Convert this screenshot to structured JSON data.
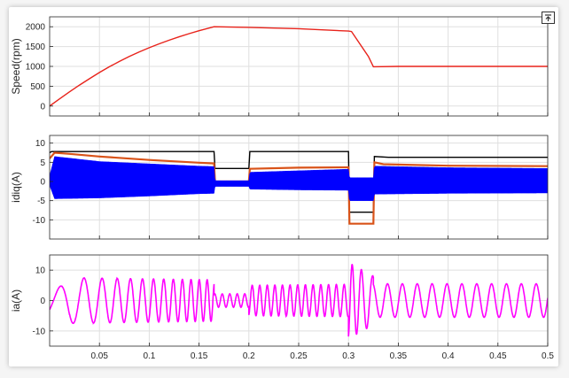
{
  "chart_data": [
    {
      "type": "line",
      "ylabel": "Speed(rpm)",
      "xlim": [
        0,
        0.5
      ],
      "ylim": [
        -250,
        2250
      ],
      "yticks": [
        0,
        500,
        1000,
        1500,
        2000
      ],
      "grid": true,
      "series": [
        {
          "color": "#e8231b",
          "x": [
            0.0,
            0.01,
            0.02,
            0.03,
            0.04,
            0.05,
            0.06,
            0.07,
            0.08,
            0.09,
            0.1,
            0.11,
            0.12,
            0.13,
            0.14,
            0.15,
            0.165,
            0.2,
            0.25,
            0.3,
            0.303,
            0.32,
            0.325,
            0.35,
            0.4,
            0.45,
            0.5
          ],
          "y": [
            0,
            180,
            360,
            530,
            690,
            845,
            990,
            1125,
            1250,
            1365,
            1470,
            1570,
            1660,
            1745,
            1825,
            1900,
            2000,
            1985,
            1950,
            1890,
            1880,
            1250,
            990,
            1000,
            1000,
            1000,
            1000
          ]
        }
      ]
    },
    {
      "type": "line",
      "ylabel": "idiq(A)",
      "xlim": [
        0,
        0.5
      ],
      "ylim": [
        -15,
        12
      ],
      "yticks": [
        -10,
        -5,
        0,
        5,
        10
      ],
      "grid": true,
      "series": [
        {
          "color": "#000000",
          "x": [
            0.0,
            0.002,
            0.165,
            0.166,
            0.2,
            0.201,
            0.3,
            0.301,
            0.325,
            0.326,
            0.34,
            0.5
          ],
          "y": [
            7.5,
            7.8,
            7.8,
            3.4,
            3.4,
            7.8,
            7.8,
            -8.0,
            -8.0,
            6.5,
            6.3,
            6.3
          ]
        },
        {
          "color": "#d95319",
          "x": [
            0.0,
            0.005,
            0.02,
            0.05,
            0.1,
            0.15,
            0.165,
            0.166,
            0.2,
            0.201,
            0.25,
            0.3,
            0.301,
            0.325,
            0.326,
            0.335,
            0.4,
            0.5
          ],
          "y": [
            6.0,
            7.5,
            7.2,
            6.5,
            5.6,
            4.9,
            4.7,
            0.0,
            0.0,
            3.3,
            3.6,
            3.7,
            -11.0,
            -11.0,
            5.0,
            4.5,
            4.1,
            4.0
          ]
        },
        {
          "color": "#0000ff",
          "band": true,
          "x": [
            0.0,
            0.005,
            0.05,
            0.1,
            0.15,
            0.165,
            0.166,
            0.2,
            0.201,
            0.25,
            0.3,
            0.301,
            0.325,
            0.326,
            0.4,
            0.5
          ],
          "ymax": [
            1.5,
            6.5,
            5.2,
            4.6,
            4.0,
            3.9,
            0.2,
            0.2,
            2.4,
            2.8,
            3.2,
            1.0,
            1.0,
            4.0,
            3.6,
            3.4
          ],
          "ymin": [
            -1.0,
            -4.5,
            -4.3,
            -3.8,
            -3.2,
            -3.1,
            -1.3,
            -1.3,
            -2.0,
            -2.2,
            -2.3,
            -5.0,
            -5.0,
            -3.3,
            -3.1,
            -3.0
          ]
        }
      ]
    },
    {
      "type": "line",
      "ylabel": "ia(A)",
      "xlabel": "",
      "xlim": [
        0,
        0.5
      ],
      "ylim": [
        -15,
        15
      ],
      "yticks": [
        -10,
        0,
        10
      ],
      "xticks": [
        0.05,
        0.1,
        0.15,
        0.2,
        0.25,
        0.3,
        0.35,
        0.4,
        0.45,
        0.5
      ],
      "xtick_labels": [
        "0.05",
        "0.1",
        "0.15",
        "0.2",
        "0.25",
        "0.3",
        "0.35",
        "0.4",
        "0.45",
        "0.5"
      ],
      "grid": true,
      "series": [
        {
          "color": "#ff00ff",
          "oscillation": true,
          "segments": [
            {
              "x": [
                0.0,
                0.02
              ],
              "freq_start": 20,
              "freq_end": 40,
              "amp_start": 4,
              "amp_end": 8,
              "offset": -3
            },
            {
              "x": [
                0.02,
                0.165
              ],
              "freq_start": 40,
              "freq_end": 133,
              "amp_start": 7.5,
              "amp_end": 6.8,
              "offset": 0
            },
            {
              "x": [
                0.165,
                0.2
              ],
              "freq_start": 133,
              "freq_end": 133,
              "amp_start": 2.2,
              "amp_end": 2.2,
              "offset": 0
            },
            {
              "x": [
                0.2,
                0.3
              ],
              "freq_start": 133,
              "freq_end": 127,
              "amp_start": 5.0,
              "amp_end": 5.3,
              "offset": 0
            },
            {
              "x": [
                0.3,
                0.325
              ],
              "freq_start": 125,
              "freq_end": 75,
              "amp_start": 12.5,
              "amp_end": 8.0,
              "offset": 0
            },
            {
              "x": [
                0.325,
                0.5
              ],
              "freq_start": 67,
              "freq_end": 67,
              "amp_start": 5.5,
              "amp_end": 5.5,
              "offset": 0
            }
          ]
        }
      ]
    }
  ]
}
